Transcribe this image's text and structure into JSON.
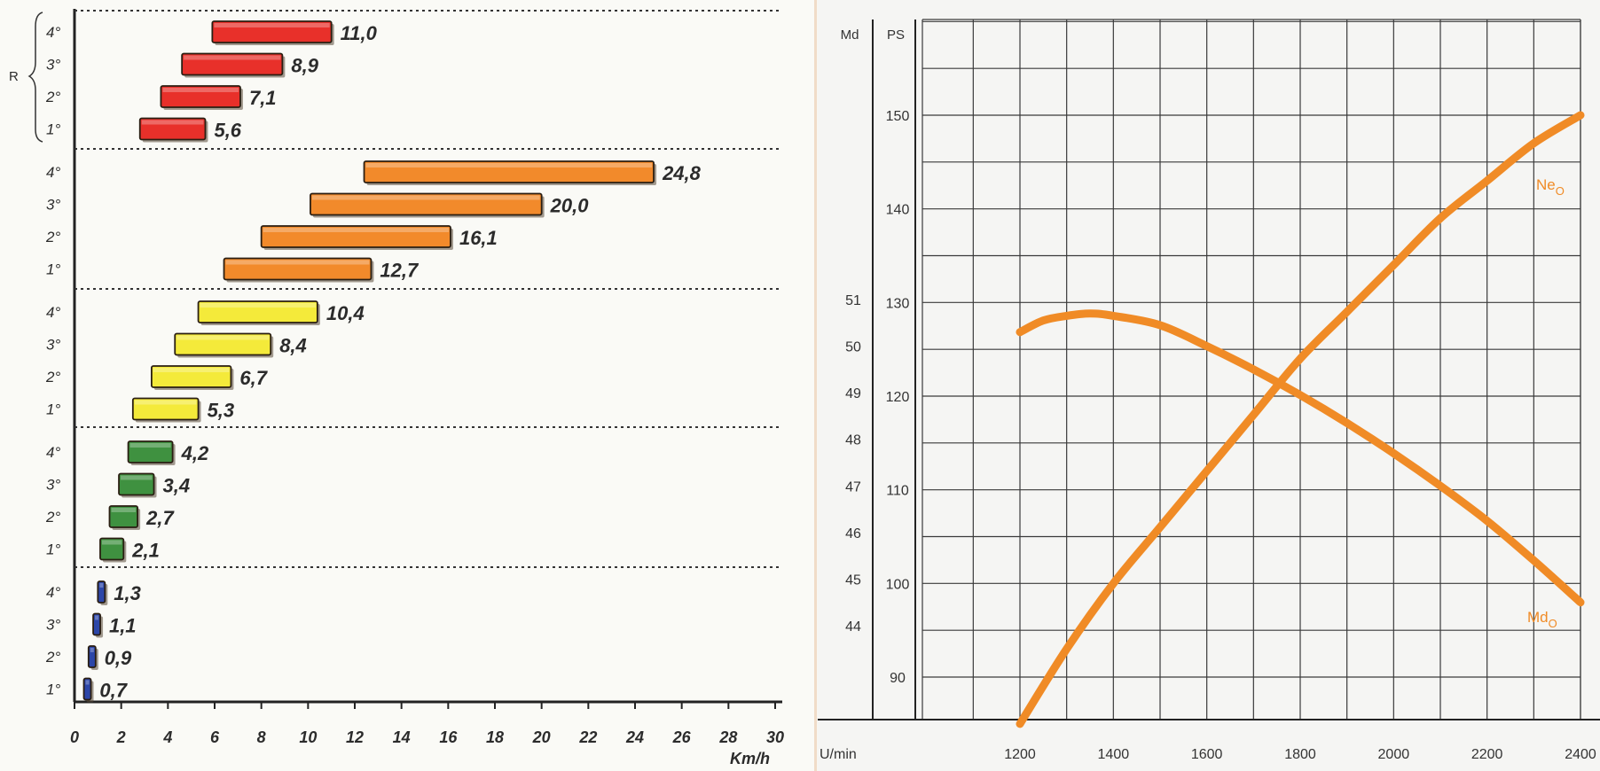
{
  "chart_data": [
    {
      "type": "bar",
      "subtype": "range",
      "xlabel": "Km/h",
      "xlim": [
        0,
        30
      ],
      "xticks": [
        "0",
        "2",
        "4",
        "6",
        "8",
        "10",
        "12",
        "14",
        "16",
        "18",
        "20",
        "22",
        "24",
        "26",
        "28",
        "30"
      ],
      "gear_labels": [
        "4°",
        "3°",
        "2°",
        "1°"
      ],
      "group_label": "R",
      "groups": [
        {
          "color": "#e8302a",
          "bars": [
            {
              "gear": "4°",
              "start": 5.9,
              "end": 11.0,
              "label": "11,0"
            },
            {
              "gear": "3°",
              "start": 4.6,
              "end": 8.9,
              "label": "8,9"
            },
            {
              "gear": "2°",
              "start": 3.7,
              "end": 7.1,
              "label": "7,1"
            },
            {
              "gear": "1°",
              "start": 2.8,
              "end": 5.6,
              "label": "5,6"
            }
          ]
        },
        {
          "color": "#f28a2b",
          "bars": [
            {
              "gear": "4°",
              "start": 12.4,
              "end": 24.8,
              "label": "24,8"
            },
            {
              "gear": "3°",
              "start": 10.1,
              "end": 20.0,
              "label": "20,0"
            },
            {
              "gear": "2°",
              "start": 8.0,
              "end": 16.1,
              "label": "16,1"
            },
            {
              "gear": "1°",
              "start": 6.4,
              "end": 12.7,
              "label": "12,7"
            }
          ]
        },
        {
          "color": "#f4ea3a",
          "bars": [
            {
              "gear": "4°",
              "start": 5.3,
              "end": 10.4,
              "label": "10,4"
            },
            {
              "gear": "3°",
              "start": 4.3,
              "end": 8.4,
              "label": "8,4"
            },
            {
              "gear": "2°",
              "start": 3.3,
              "end": 6.7,
              "label": "6,7"
            },
            {
              "gear": "1°",
              "start": 2.5,
              "end": 5.3,
              "label": "5,3"
            }
          ]
        },
        {
          "color": "#3f9140",
          "bars": [
            {
              "gear": "4°",
              "start": 2.3,
              "end": 4.2,
              "label": "4,2"
            },
            {
              "gear": "3°",
              "start": 1.9,
              "end": 3.4,
              "label": "3,4"
            },
            {
              "gear": "2°",
              "start": 1.5,
              "end": 2.7,
              "label": "2,7"
            },
            {
              "gear": "1°",
              "start": 1.1,
              "end": 2.1,
              "label": "2,1"
            }
          ]
        },
        {
          "color": "#2c46a8",
          "bars": [
            {
              "gear": "4°",
              "start": 1.0,
              "end": 1.3,
              "label": "1,3"
            },
            {
              "gear": "3°",
              "start": 0.8,
              "end": 1.1,
              "label": "1,1"
            },
            {
              "gear": "2°",
              "start": 0.6,
              "end": 0.9,
              "label": "0,9"
            },
            {
              "gear": "1°",
              "start": 0.4,
              "end": 0.7,
              "label": "0,7"
            }
          ]
        }
      ]
    },
    {
      "type": "line",
      "xlabel": "U/min",
      "xlim": [
        1100,
        2400
      ],
      "xticks": [
        1200,
        1400,
        1600,
        1800,
        2000,
        2200,
        2400
      ],
      "axes_labels": {
        "md": "Md",
        "ps": "PS"
      },
      "ps_ticks": [
        90,
        100,
        110,
        120,
        130,
        140,
        150
      ],
      "ps_ylim": [
        85,
        160
      ],
      "md_ticks": [
        44,
        45,
        46,
        47,
        48,
        49,
        50,
        51
      ],
      "md_ylim": [
        41.5,
        54.5
      ],
      "grid": true,
      "color": "#f08b26",
      "series": [
        {
          "name": "Ne",
          "subscript": "O",
          "axis": "ps",
          "x": [
            1200,
            1300,
            1400,
            1500,
            1600,
            1700,
            1800,
            1900,
            2000,
            2100,
            2200,
            2300,
            2400
          ],
          "y": [
            85,
            93,
            100,
            106,
            112,
            118,
            124,
            129,
            134,
            139,
            143,
            147,
            150
          ]
        },
        {
          "name": "Md",
          "subscript": "O",
          "axis": "md",
          "x": [
            1200,
            1250,
            1300,
            1350,
            1400,
            1500,
            1600,
            1700,
            1800,
            1900,
            2000,
            2100,
            2200,
            2300,
            2400
          ],
          "y": [
            50.3,
            50.55,
            50.65,
            50.7,
            50.65,
            50.45,
            50.0,
            49.5,
            48.95,
            48.35,
            47.7,
            47.0,
            46.25,
            45.4,
            44.5
          ]
        }
      ]
    }
  ]
}
